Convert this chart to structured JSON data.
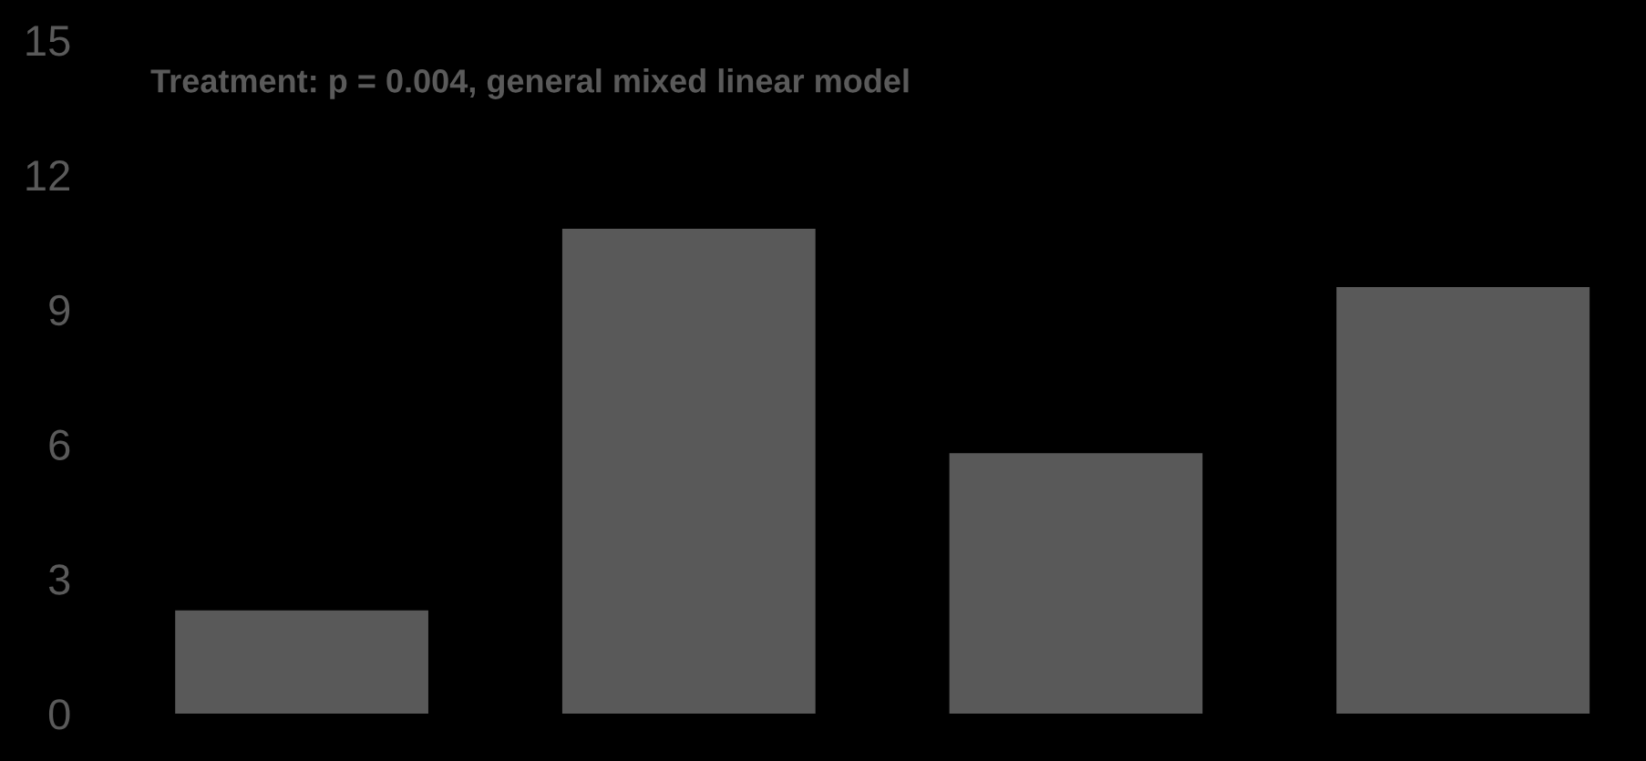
{
  "chart_data": {
    "type": "bar",
    "categories": [
      null,
      null,
      null,
      null
    ],
    "values": [
      2.3,
      10.8,
      5.8,
      9.5
    ],
    "color": "#595959",
    "ylim": [
      0,
      15
    ],
    "yticks": [
      0,
      3,
      6,
      9,
      12,
      15
    ],
    "grid": false,
    "annotations": [
      "Treatment: p = 0.004, general mixed linear model"
    ]
  }
}
